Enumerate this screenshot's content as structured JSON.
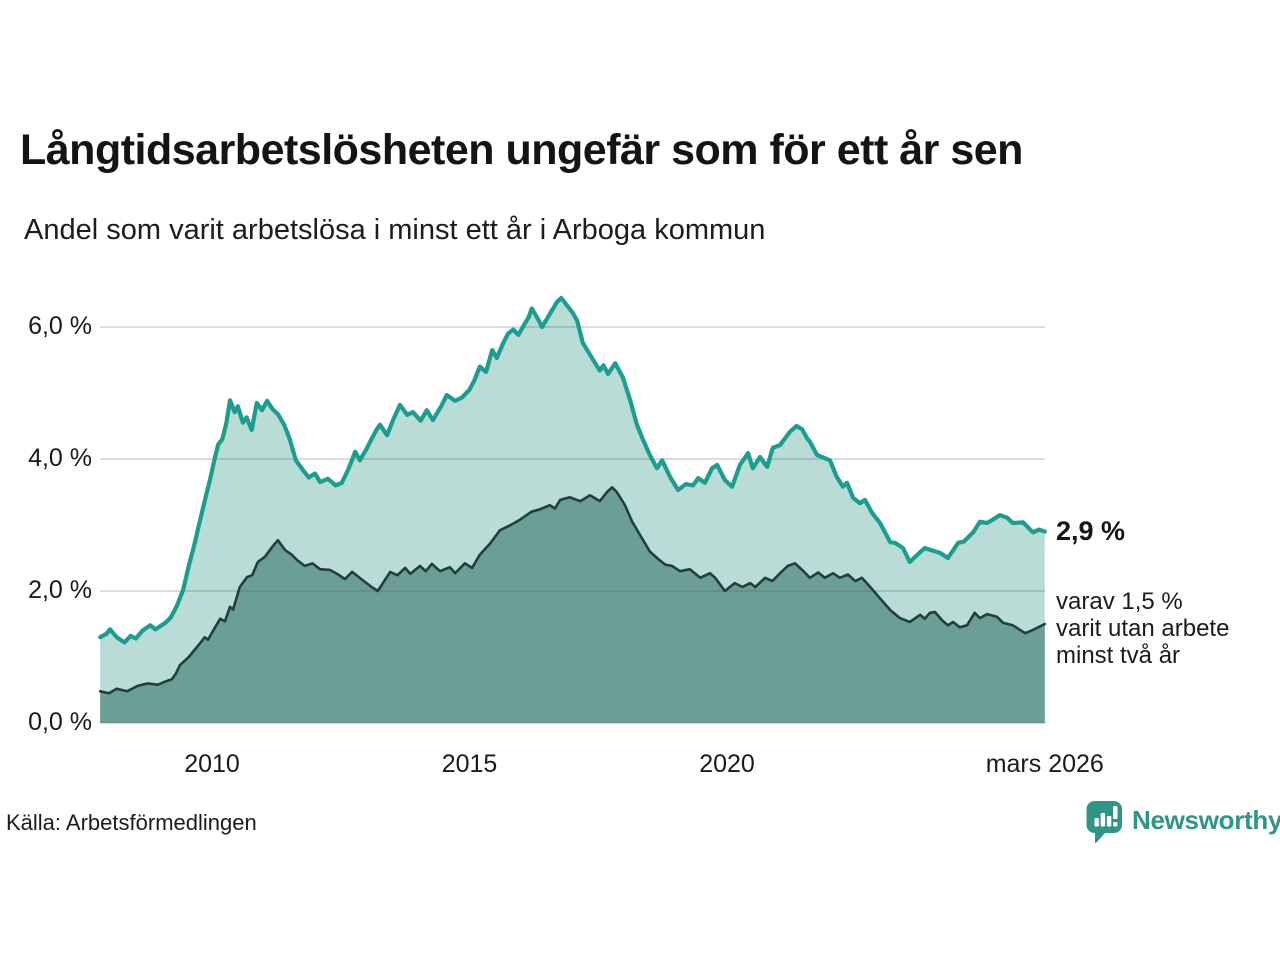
{
  "header": {
    "title": "Långtidsarbetslösheten ungefär som för ett år sen",
    "subtitle": "Andel som varit arbetslösa i minst ett år i Arboga kommun"
  },
  "footer": {
    "source": "Källa: Arbetsförmedlingen",
    "brand_name": "Newsworthy"
  },
  "colors": {
    "series1_line": "#1b9e8f",
    "series1_fill": "#b9dcd6",
    "series2_line": "#21403a",
    "series2_fill": "#6a9e96",
    "gridline": "rgba(90,90,90,0.28)",
    "brand_teal": "#2f9587",
    "text_dark": "#141414"
  },
  "chart_data": {
    "type": "area",
    "title": "Långtidsarbetslösheten ungefär som för ett år sen",
    "subtitle": "Andel som varit arbetslösa i minst ett år i Arboga kommun",
    "unit": "%",
    "x_axis": {
      "range": [
        2007.83,
        2026.25
      ],
      "ticks": [
        {
          "label": "2010",
          "year": 2010
        },
        {
          "label": "2015",
          "year": 2015
        },
        {
          "label": "2020",
          "year": 2020
        },
        {
          "label": "mars 2026",
          "year": 2026.17
        }
      ]
    },
    "y_axis": {
      "range": [
        0,
        6.8
      ],
      "gridlines": [
        0,
        2,
        4,
        6
      ],
      "ticks": [
        {
          "label": "6,0 %",
          "value": 6
        },
        {
          "label": "4,0 %",
          "value": 4
        },
        {
          "label": "2,0 %",
          "value": 2
        },
        {
          "label": "0,0 %",
          "value": 0
        }
      ]
    },
    "annotations": {
      "end_label_main": "2,9 %",
      "end_value_main": 2.9,
      "note_lines": [
        "varav 1,5 %",
        "varit utan arbete",
        "minst två år"
      ]
    },
    "series": [
      {
        "name": "Andel arbetslösa minst ett år",
        "end_value": 2.9,
        "points": [
          [
            2007.83,
            1.3
          ],
          [
            2007.95,
            1.35
          ],
          [
            2008.02,
            1.42
          ],
          [
            2008.15,
            1.3
          ],
          [
            2008.3,
            1.22
          ],
          [
            2008.42,
            1.32
          ],
          [
            2008.52,
            1.28
          ],
          [
            2008.65,
            1.4
          ],
          [
            2008.8,
            1.48
          ],
          [
            2008.9,
            1.42
          ],
          [
            2009.0,
            1.47
          ],
          [
            2009.1,
            1.52
          ],
          [
            2009.2,
            1.6
          ],
          [
            2009.32,
            1.78
          ],
          [
            2009.44,
            2.02
          ],
          [
            2009.55,
            2.38
          ],
          [
            2009.65,
            2.68
          ],
          [
            2009.77,
            3.08
          ],
          [
            2009.9,
            3.5
          ],
          [
            2009.96,
            3.68
          ],
          [
            2010.06,
            4.03
          ],
          [
            2010.12,
            4.22
          ],
          [
            2010.2,
            4.3
          ],
          [
            2010.28,
            4.55
          ],
          [
            2010.35,
            4.89
          ],
          [
            2010.44,
            4.71
          ],
          [
            2010.5,
            4.8
          ],
          [
            2010.6,
            4.55
          ],
          [
            2010.67,
            4.63
          ],
          [
            2010.77,
            4.44
          ],
          [
            2010.87,
            4.85
          ],
          [
            2010.97,
            4.74
          ],
          [
            2011.07,
            4.88
          ],
          [
            2011.18,
            4.75
          ],
          [
            2011.28,
            4.68
          ],
          [
            2011.4,
            4.52
          ],
          [
            2011.5,
            4.32
          ],
          [
            2011.63,
            3.98
          ],
          [
            2011.75,
            3.85
          ],
          [
            2011.88,
            3.72
          ],
          [
            2012.0,
            3.78
          ],
          [
            2012.1,
            3.65
          ],
          [
            2012.25,
            3.7
          ],
          [
            2012.4,
            3.6
          ],
          [
            2012.52,
            3.64
          ],
          [
            2012.65,
            3.85
          ],
          [
            2012.78,
            4.11
          ],
          [
            2012.87,
            3.98
          ],
          [
            2013.0,
            4.15
          ],
          [
            2013.07,
            4.26
          ],
          [
            2013.2,
            4.45
          ],
          [
            2013.26,
            4.52
          ],
          [
            2013.4,
            4.36
          ],
          [
            2013.52,
            4.6
          ],
          [
            2013.65,
            4.82
          ],
          [
            2013.79,
            4.67
          ],
          [
            2013.9,
            4.71
          ],
          [
            2014.05,
            4.58
          ],
          [
            2014.17,
            4.74
          ],
          [
            2014.29,
            4.59
          ],
          [
            2014.45,
            4.8
          ],
          [
            2014.56,
            4.97
          ],
          [
            2014.72,
            4.88
          ],
          [
            2014.85,
            4.93
          ],
          [
            2015.0,
            5.05
          ],
          [
            2015.1,
            5.2
          ],
          [
            2015.2,
            5.4
          ],
          [
            2015.32,
            5.32
          ],
          [
            2015.44,
            5.65
          ],
          [
            2015.53,
            5.53
          ],
          [
            2015.65,
            5.75
          ],
          [
            2015.75,
            5.9
          ],
          [
            2015.85,
            5.96
          ],
          [
            2015.95,
            5.88
          ],
          [
            2016.05,
            6.02
          ],
          [
            2016.15,
            6.15
          ],
          [
            2016.21,
            6.28
          ],
          [
            2016.33,
            6.12
          ],
          [
            2016.41,
            6.0
          ],
          [
            2016.5,
            6.12
          ],
          [
            2016.6,
            6.25
          ],
          [
            2016.7,
            6.38
          ],
          [
            2016.78,
            6.44
          ],
          [
            2016.9,
            6.32
          ],
          [
            2017.0,
            6.22
          ],
          [
            2017.09,
            6.1
          ],
          [
            2017.2,
            5.76
          ],
          [
            2017.34,
            5.58
          ],
          [
            2017.44,
            5.45
          ],
          [
            2017.53,
            5.34
          ],
          [
            2017.6,
            5.42
          ],
          [
            2017.69,
            5.29
          ],
          [
            2017.83,
            5.45
          ],
          [
            2017.98,
            5.23
          ],
          [
            2018.12,
            4.89
          ],
          [
            2018.25,
            4.52
          ],
          [
            2018.37,
            4.29
          ],
          [
            2018.5,
            4.06
          ],
          [
            2018.64,
            3.86
          ],
          [
            2018.74,
            3.98
          ],
          [
            2018.9,
            3.72
          ],
          [
            2019.05,
            3.53
          ],
          [
            2019.2,
            3.62
          ],
          [
            2019.34,
            3.6
          ],
          [
            2019.44,
            3.71
          ],
          [
            2019.57,
            3.64
          ],
          [
            2019.71,
            3.86
          ],
          [
            2019.81,
            3.91
          ],
          [
            2019.96,
            3.68
          ],
          [
            2020.1,
            3.58
          ],
          [
            2020.25,
            3.91
          ],
          [
            2020.41,
            4.09
          ],
          [
            2020.5,
            3.86
          ],
          [
            2020.64,
            4.03
          ],
          [
            2020.78,
            3.88
          ],
          [
            2020.89,
            4.17
          ],
          [
            2021.03,
            4.21
          ],
          [
            2021.22,
            4.41
          ],
          [
            2021.35,
            4.5
          ],
          [
            2021.46,
            4.45
          ],
          [
            2021.55,
            4.32
          ],
          [
            2021.61,
            4.26
          ],
          [
            2021.75,
            4.06
          ],
          [
            2021.88,
            4.02
          ],
          [
            2022.0,
            3.98
          ],
          [
            2022.13,
            3.73
          ],
          [
            2022.25,
            3.58
          ],
          [
            2022.33,
            3.64
          ],
          [
            2022.45,
            3.41
          ],
          [
            2022.58,
            3.33
          ],
          [
            2022.68,
            3.38
          ],
          [
            2022.82,
            3.18
          ],
          [
            2022.97,
            3.03
          ],
          [
            2023.17,
            2.74
          ],
          [
            2023.26,
            2.73
          ],
          [
            2023.42,
            2.65
          ],
          [
            2023.55,
            2.44
          ],
          [
            2023.75,
            2.59
          ],
          [
            2023.84,
            2.65
          ],
          [
            2024.0,
            2.61
          ],
          [
            2024.13,
            2.58
          ],
          [
            2024.29,
            2.5
          ],
          [
            2024.49,
            2.73
          ],
          [
            2024.6,
            2.75
          ],
          [
            2024.78,
            2.89
          ],
          [
            2024.91,
            3.05
          ],
          [
            2025.05,
            3.03
          ],
          [
            2025.16,
            3.08
          ],
          [
            2025.3,
            3.15
          ],
          [
            2025.44,
            3.11
          ],
          [
            2025.55,
            3.03
          ],
          [
            2025.75,
            3.04
          ],
          [
            2025.94,
            2.89
          ],
          [
            2026.06,
            2.93
          ],
          [
            2026.17,
            2.9
          ]
        ]
      },
      {
        "name": "varav utan arbete minst två år",
        "end_value": 1.5,
        "points": [
          [
            2007.83,
            0.48
          ],
          [
            2008.0,
            0.45
          ],
          [
            2008.15,
            0.52
          ],
          [
            2008.35,
            0.48
          ],
          [
            2008.55,
            0.56
          ],
          [
            2008.75,
            0.6
          ],
          [
            2008.95,
            0.58
          ],
          [
            2009.1,
            0.63
          ],
          [
            2009.22,
            0.66
          ],
          [
            2009.3,
            0.75
          ],
          [
            2009.38,
            0.88
          ],
          [
            2009.55,
            1.0
          ],
          [
            2009.77,
            1.21
          ],
          [
            2009.86,
            1.3
          ],
          [
            2009.92,
            1.26
          ],
          [
            2010.06,
            1.45
          ],
          [
            2010.16,
            1.58
          ],
          [
            2010.25,
            1.54
          ],
          [
            2010.35,
            1.76
          ],
          [
            2010.41,
            1.72
          ],
          [
            2010.54,
            2.06
          ],
          [
            2010.68,
            2.21
          ],
          [
            2010.78,
            2.24
          ],
          [
            2010.89,
            2.44
          ],
          [
            2011.03,
            2.52
          ],
          [
            2011.17,
            2.67
          ],
          [
            2011.28,
            2.77
          ],
          [
            2011.42,
            2.62
          ],
          [
            2011.55,
            2.55
          ],
          [
            2011.65,
            2.47
          ],
          [
            2011.8,
            2.38
          ],
          [
            2011.95,
            2.42
          ],
          [
            2012.1,
            2.33
          ],
          [
            2012.29,
            2.32
          ],
          [
            2012.45,
            2.25
          ],
          [
            2012.58,
            2.18
          ],
          [
            2012.72,
            2.29
          ],
          [
            2012.9,
            2.18
          ],
          [
            2013.1,
            2.06
          ],
          [
            2013.22,
            2.0
          ],
          [
            2013.46,
            2.29
          ],
          [
            2013.6,
            2.24
          ],
          [
            2013.75,
            2.35
          ],
          [
            2013.85,
            2.26
          ],
          [
            2014.04,
            2.38
          ],
          [
            2014.15,
            2.3
          ],
          [
            2014.27,
            2.41
          ],
          [
            2014.43,
            2.3
          ],
          [
            2014.62,
            2.36
          ],
          [
            2014.72,
            2.27
          ],
          [
            2014.91,
            2.42
          ],
          [
            2015.05,
            2.35
          ],
          [
            2015.2,
            2.55
          ],
          [
            2015.4,
            2.72
          ],
          [
            2015.59,
            2.92
          ],
          [
            2015.8,
            3.0
          ],
          [
            2015.98,
            3.08
          ],
          [
            2016.2,
            3.2
          ],
          [
            2016.37,
            3.24
          ],
          [
            2016.56,
            3.3
          ],
          [
            2016.66,
            3.25
          ],
          [
            2016.76,
            3.38
          ],
          [
            2016.95,
            3.42
          ],
          [
            2017.15,
            3.36
          ],
          [
            2017.34,
            3.45
          ],
          [
            2017.45,
            3.4
          ],
          [
            2017.53,
            3.36
          ],
          [
            2017.67,
            3.5
          ],
          [
            2017.77,
            3.57
          ],
          [
            2017.86,
            3.5
          ],
          [
            2018.02,
            3.3
          ],
          [
            2018.16,
            3.05
          ],
          [
            2018.31,
            2.85
          ],
          [
            2018.5,
            2.6
          ],
          [
            2018.64,
            2.5
          ],
          [
            2018.8,
            2.4
          ],
          [
            2018.93,
            2.38
          ],
          [
            2019.09,
            2.3
          ],
          [
            2019.28,
            2.33
          ],
          [
            2019.48,
            2.2
          ],
          [
            2019.67,
            2.27
          ],
          [
            2019.77,
            2.2
          ],
          [
            2019.96,
            2.0
          ],
          [
            2020.15,
            2.12
          ],
          [
            2020.3,
            2.06
          ],
          [
            2020.45,
            2.12
          ],
          [
            2020.55,
            2.06
          ],
          [
            2020.74,
            2.2
          ],
          [
            2020.88,
            2.15
          ],
          [
            2021.03,
            2.27
          ],
          [
            2021.18,
            2.38
          ],
          [
            2021.32,
            2.42
          ],
          [
            2021.46,
            2.32
          ],
          [
            2021.61,
            2.2
          ],
          [
            2021.77,
            2.28
          ],
          [
            2021.9,
            2.2
          ],
          [
            2022.06,
            2.27
          ],
          [
            2022.19,
            2.2
          ],
          [
            2022.35,
            2.25
          ],
          [
            2022.49,
            2.15
          ],
          [
            2022.62,
            2.2
          ],
          [
            2022.78,
            2.06
          ],
          [
            2022.97,
            1.89
          ],
          [
            2023.17,
            1.71
          ],
          [
            2023.36,
            1.59
          ],
          [
            2023.55,
            1.53
          ],
          [
            2023.75,
            1.64
          ],
          [
            2023.84,
            1.58
          ],
          [
            2023.94,
            1.67
          ],
          [
            2024.04,
            1.68
          ],
          [
            2024.17,
            1.56
          ],
          [
            2024.29,
            1.48
          ],
          [
            2024.39,
            1.53
          ],
          [
            2024.52,
            1.45
          ],
          [
            2024.66,
            1.48
          ],
          [
            2024.81,
            1.67
          ],
          [
            2024.91,
            1.59
          ],
          [
            2025.05,
            1.65
          ],
          [
            2025.24,
            1.61
          ],
          [
            2025.36,
            1.52
          ],
          [
            2025.55,
            1.48
          ],
          [
            2025.79,
            1.36
          ],
          [
            2025.94,
            1.41
          ],
          [
            2026.17,
            1.5
          ]
        ]
      }
    ]
  }
}
